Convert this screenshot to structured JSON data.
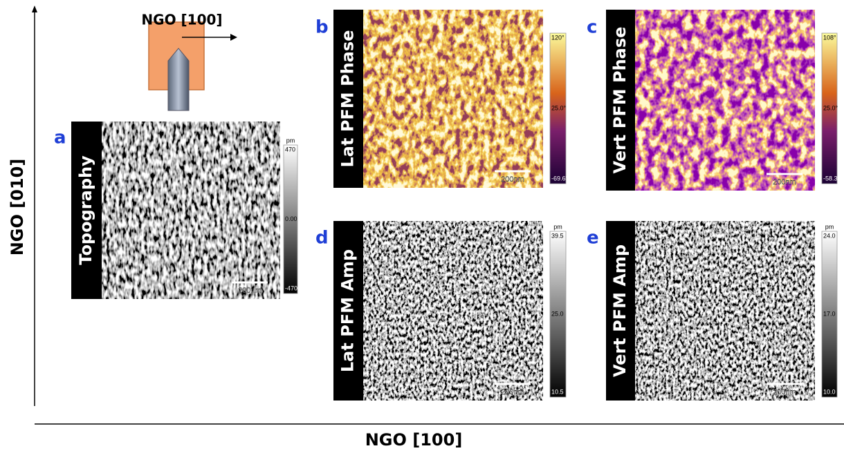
{
  "axes": {
    "vertical_label": "NGO [010]",
    "horizontal_label": "NGO [100]"
  },
  "sample": {
    "direction_label": "NGO [100]"
  },
  "panels": [
    {
      "letter": "a",
      "title": "Topography",
      "colorbar": {
        "unit": "pm",
        "max": "470",
        "mid": "0.00",
        "min": "-470"
      },
      "scale_bar": "200nm"
    },
    {
      "letter": "b",
      "title": "Lat PFM Phase",
      "colorbar": {
        "max": "120°",
        "mid": "25.0°",
        "min": "-69.6°"
      },
      "scale_bar": "200nm"
    },
    {
      "letter": "c",
      "title": "Vert PFM Phase",
      "colorbar": {
        "max": "108°",
        "mid": "25.0°",
        "min": "-58.3°"
      },
      "scale_bar": "200nm"
    },
    {
      "letter": "d",
      "title": "Lat PFM Amp",
      "colorbar": {
        "unit": "pm",
        "max": "39.5",
        "mid": "25.0",
        "min": "10.5"
      },
      "scale_bar": "200nm"
    },
    {
      "letter": "e",
      "title": "Vert PFM Amp",
      "colorbar": {
        "unit": "pm",
        "max": "24.0",
        "mid": "17.0",
        "min": "10.0"
      },
      "scale_bar": "200nm"
    }
  ]
}
